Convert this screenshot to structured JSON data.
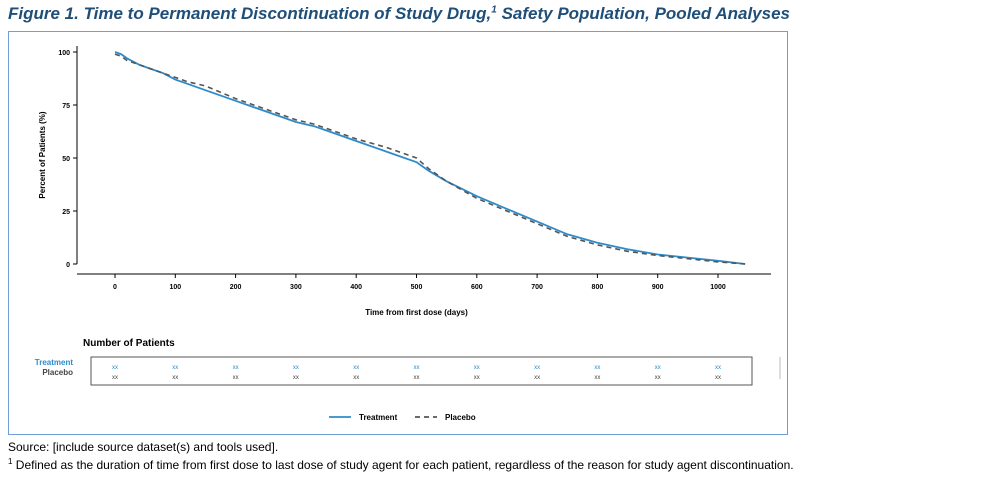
{
  "figure": {
    "title": "Figure 1. Time to Permanent Discontinuation of Study Drug,",
    "title_sup": "1",
    "title_tail": " Safety Population, Pooled Analyses",
    "source": "Source: [include source dataset(s) and tools used].",
    "footnote_sup": "1",
    "footnote": " Defined as the duration of time from first dose to last dose of study agent for each patient, regardless of the reason for study agent discontinuation."
  },
  "risk_table": {
    "title": "Number of Patients",
    "rows": [
      {
        "label": "Treatment",
        "color": "#2e8bc9",
        "values": [
          "xx",
          "xx",
          "xx",
          "xx",
          "xx",
          "xx",
          "xx",
          "xx",
          "xx",
          "xx",
          "xx"
        ]
      },
      {
        "label": "Placebo",
        "color": "#444444",
        "values": [
          "xx",
          "xx",
          "xx",
          "xx",
          "xx",
          "xx",
          "xx",
          "xx",
          "xx",
          "xx",
          "xx"
        ]
      }
    ]
  },
  "chart_data": {
    "type": "line",
    "title": "",
    "xlabel": "Time from first dose (days)",
    "ylabel": "Percent of Patients (%)",
    "xlim": [
      0,
      1050
    ],
    "ylim": [
      0,
      100
    ],
    "xticks": [
      0,
      100,
      200,
      300,
      400,
      500,
      600,
      700,
      800,
      900,
      1000
    ],
    "yticks": [
      0,
      25,
      50,
      75,
      100
    ],
    "grid": false,
    "legend_position": "bottom",
    "series": [
      {
        "name": "Treatment",
        "color": "#2e8bc9",
        "style": "solid",
        "x": [
          0,
          10,
          20,
          40,
          60,
          80,
          100,
          120,
          150,
          200,
          250,
          300,
          330,
          350,
          400,
          450,
          500,
          520,
          550,
          600,
          650,
          700,
          750,
          800,
          850,
          900,
          950,
          1000,
          1045
        ],
        "y": [
          100,
          99,
          97,
          94,
          92,
          90,
          87,
          85,
          82,
          77,
          72,
          67,
          65,
          63,
          58,
          53,
          48,
          44,
          39,
          32,
          26,
          20,
          14,
          10,
          7,
          4.5,
          3,
          1.5,
          0
        ]
      },
      {
        "name": "Placebo",
        "color": "#555555",
        "style": "dashed",
        "x": [
          0,
          10,
          20,
          40,
          60,
          80,
          100,
          120,
          150,
          200,
          250,
          300,
          330,
          350,
          400,
          450,
          500,
          520,
          550,
          600,
          650,
          700,
          750,
          800,
          850,
          900,
          950,
          1000,
          1045
        ],
        "y": [
          99,
          98,
          96,
          94,
          92,
          90,
          88,
          86,
          84,
          78,
          73,
          68,
          66,
          64,
          59,
          55,
          50,
          45,
          39,
          31,
          25,
          19,
          13,
          9,
          6,
          4,
          2.5,
          1,
          0
        ]
      }
    ]
  }
}
